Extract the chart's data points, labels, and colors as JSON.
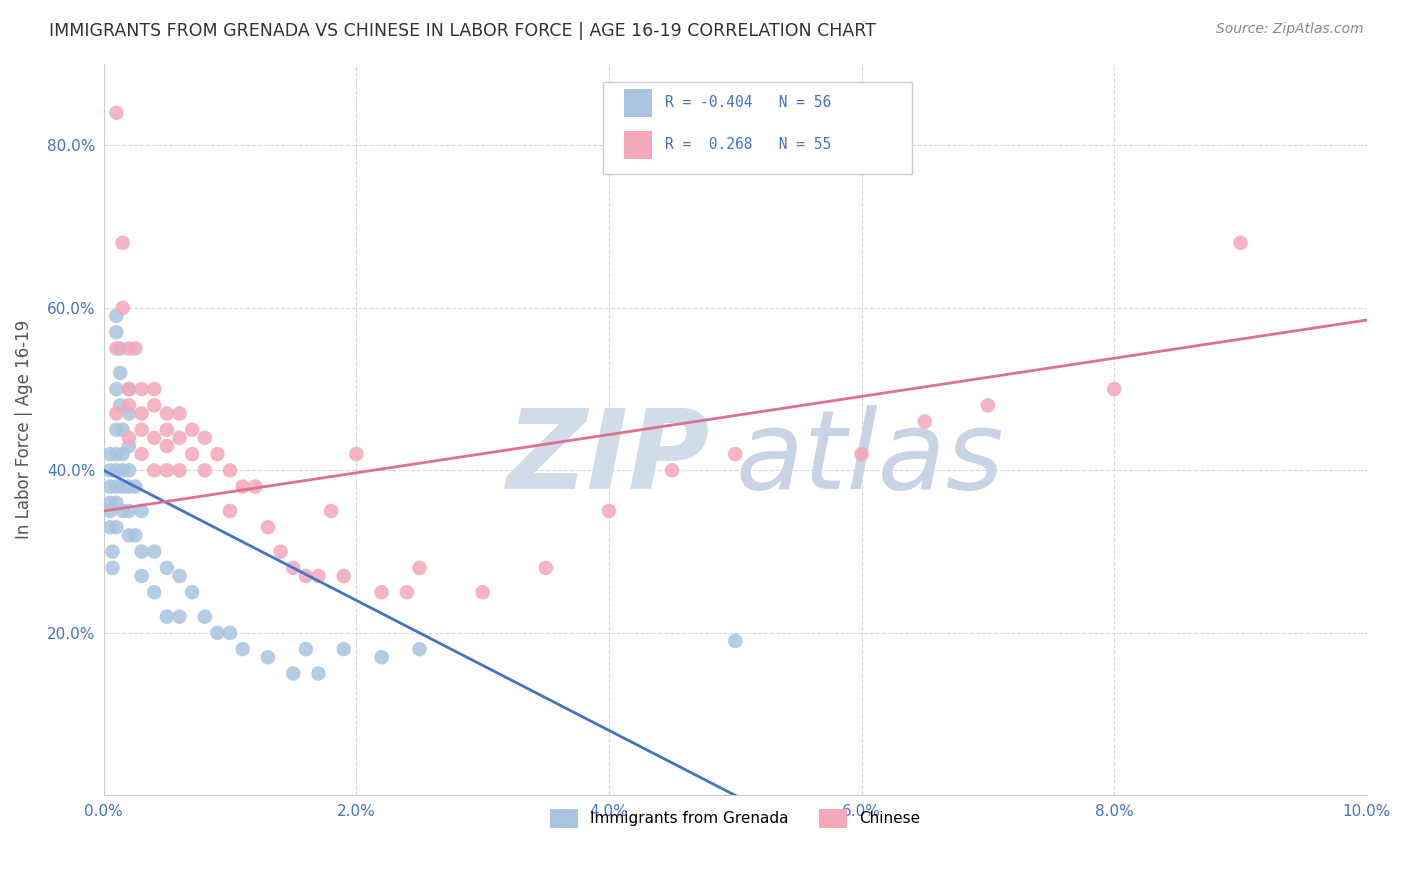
{
  "title": "IMMIGRANTS FROM GRENADA VS CHINESE IN LABOR FORCE | AGE 16-19 CORRELATION CHART",
  "source_text": "Source: ZipAtlas.com",
  "ylabel": "In Labor Force | Age 16-19",
  "xlim": [
    0.0,
    0.1
  ],
  "ylim": [
    0.0,
    0.9
  ],
  "xticks": [
    0.0,
    0.02,
    0.04,
    0.06,
    0.08,
    0.1
  ],
  "yticks": [
    0.0,
    0.2,
    0.4,
    0.6,
    0.8
  ],
  "xticklabels": [
    "0.0%",
    "2.0%",
    "4.0%",
    "6.0%",
    "8.0%",
    "10.0%"
  ],
  "yticklabels": [
    "",
    "20.0%",
    "40.0%",
    "60.0%",
    "80.0%"
  ],
  "color_grenada": "#a8c4e0",
  "color_chinese": "#f4a7b9",
  "color_line_grenada": "#4472c4",
  "color_line_chinese": "#e07090",
  "background_color": "#ffffff",
  "grid_color": "#d8d8d8",
  "title_color": "#333333",
  "axis_label_color": "#555555",
  "tick_color": "#4472c4",
  "watermark_zip_color": "#d0dce8",
  "watermark_atlas_color": "#c8d4e4",
  "grenada_x": [
    0.0005,
    0.0005,
    0.0005,
    0.0005,
    0.0005,
    0.0005,
    0.0007,
    0.0007,
    0.001,
    0.001,
    0.001,
    0.001,
    0.001,
    0.001,
    0.001,
    0.001,
    0.001,
    0.0013,
    0.0013,
    0.0013,
    0.0015,
    0.0015,
    0.0015,
    0.0015,
    0.0015,
    0.002,
    0.002,
    0.002,
    0.002,
    0.002,
    0.002,
    0.002,
    0.0025,
    0.0025,
    0.003,
    0.003,
    0.003,
    0.004,
    0.004,
    0.005,
    0.005,
    0.006,
    0.006,
    0.007,
    0.008,
    0.009,
    0.01,
    0.011,
    0.013,
    0.015,
    0.016,
    0.017,
    0.019,
    0.022,
    0.025,
    0.05
  ],
  "grenada_y": [
    0.42,
    0.4,
    0.38,
    0.36,
    0.35,
    0.33,
    0.3,
    0.28,
    0.59,
    0.57,
    0.5,
    0.45,
    0.42,
    0.4,
    0.38,
    0.36,
    0.33,
    0.55,
    0.52,
    0.48,
    0.45,
    0.42,
    0.4,
    0.38,
    0.35,
    0.5,
    0.47,
    0.43,
    0.4,
    0.38,
    0.35,
    0.32,
    0.38,
    0.32,
    0.35,
    0.3,
    0.27,
    0.3,
    0.25,
    0.28,
    0.22,
    0.27,
    0.22,
    0.25,
    0.22,
    0.2,
    0.2,
    0.18,
    0.17,
    0.15,
    0.18,
    0.15,
    0.18,
    0.17,
    0.18,
    0.19
  ],
  "chinese_x": [
    0.001,
    0.001,
    0.001,
    0.0015,
    0.0015,
    0.002,
    0.002,
    0.002,
    0.002,
    0.0025,
    0.003,
    0.003,
    0.003,
    0.003,
    0.004,
    0.004,
    0.004,
    0.004,
    0.005,
    0.005,
    0.005,
    0.005,
    0.006,
    0.006,
    0.006,
    0.007,
    0.007,
    0.008,
    0.008,
    0.009,
    0.01,
    0.01,
    0.011,
    0.012,
    0.013,
    0.014,
    0.015,
    0.016,
    0.017,
    0.018,
    0.019,
    0.02,
    0.022,
    0.024,
    0.025,
    0.03,
    0.035,
    0.04,
    0.045,
    0.05,
    0.06,
    0.065,
    0.07,
    0.08,
    0.09
  ],
  "chinese_y": [
    0.84,
    0.55,
    0.47,
    0.68,
    0.6,
    0.55,
    0.5,
    0.48,
    0.44,
    0.55,
    0.5,
    0.47,
    0.45,
    0.42,
    0.5,
    0.48,
    0.44,
    0.4,
    0.47,
    0.45,
    0.43,
    0.4,
    0.47,
    0.44,
    0.4,
    0.45,
    0.42,
    0.44,
    0.4,
    0.42,
    0.4,
    0.35,
    0.38,
    0.38,
    0.33,
    0.3,
    0.28,
    0.27,
    0.27,
    0.35,
    0.27,
    0.42,
    0.25,
    0.25,
    0.28,
    0.25,
    0.28,
    0.35,
    0.4,
    0.42,
    0.42,
    0.46,
    0.48,
    0.5,
    0.68
  ],
  "figsize": [
    14.06,
    8.92
  ],
  "dpi": 100,
  "grenada_line_x0": 0.0,
  "grenada_line_x1": 0.05,
  "grenada_line_y0": 0.4,
  "grenada_line_y1": 0.0,
  "chinese_line_x0": 0.0,
  "chinese_line_x1": 0.1,
  "chinese_line_y0": 0.35,
  "chinese_line_y1": 0.585
}
